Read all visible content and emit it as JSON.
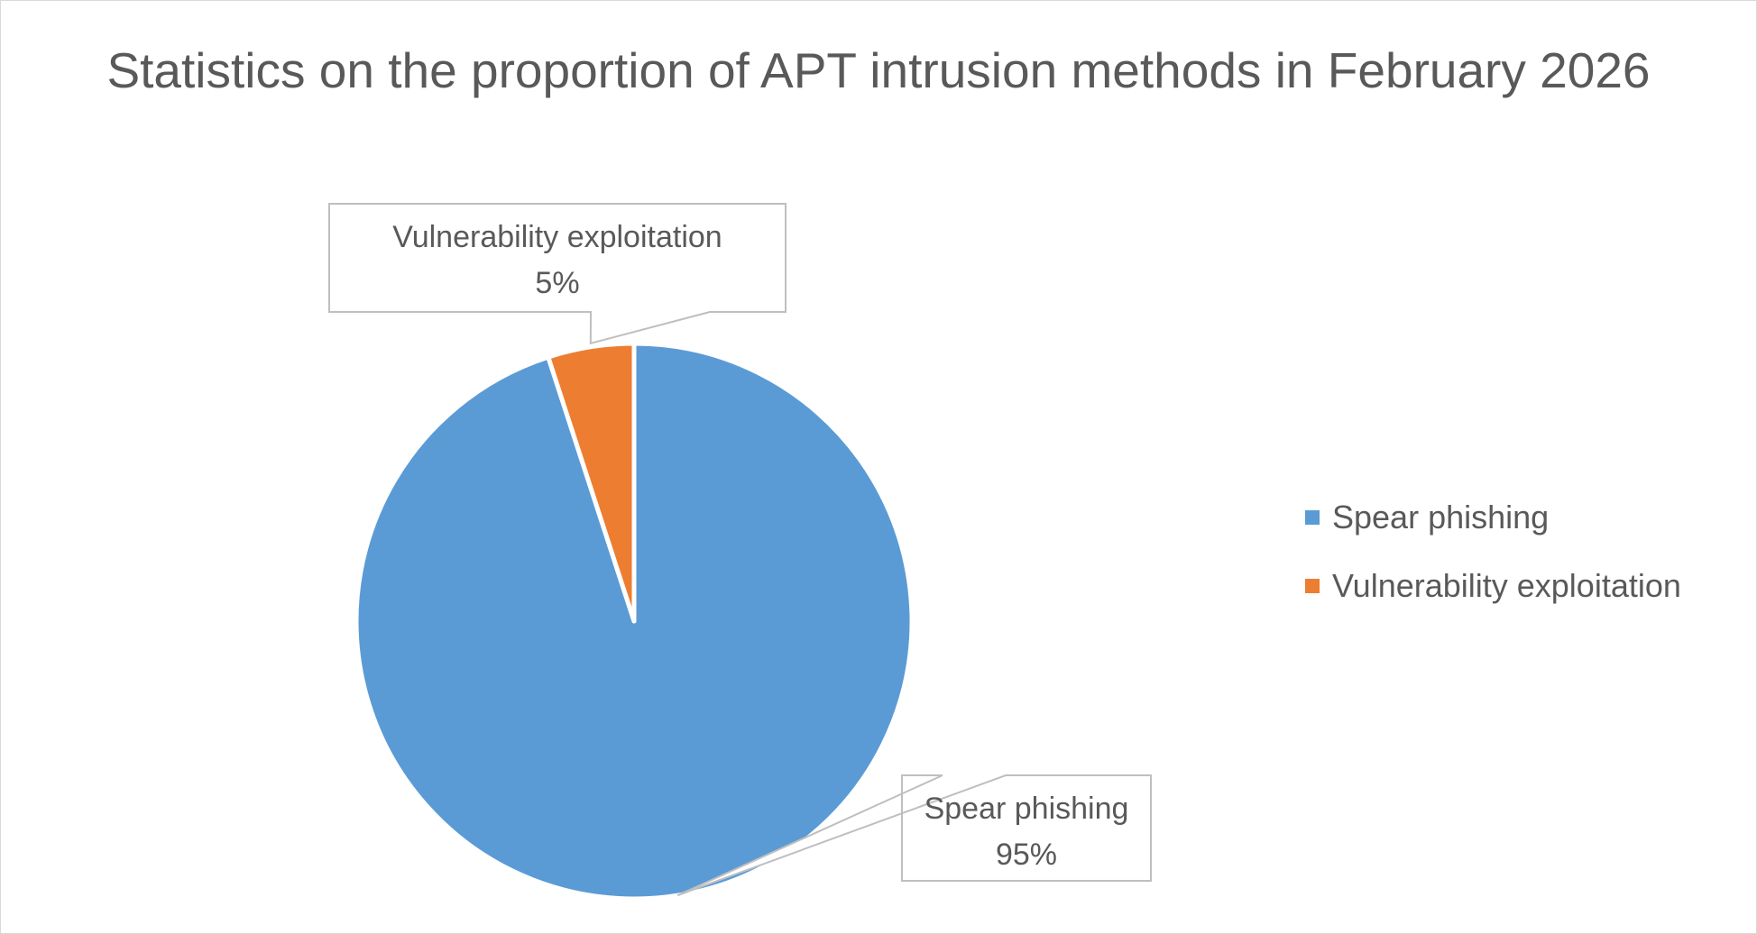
{
  "chart_data": {
    "type": "pie",
    "title": "Statistics on the proportion of APT intrusion methods in February 2026",
    "categories": [
      "Spear phishing",
      "Vulnerability exploitation"
    ],
    "values": [
      95,
      5
    ],
    "value_labels": [
      "95%",
      "5%"
    ],
    "colors": [
      "#5b9bd5",
      "#ed7d31"
    ],
    "start_angle_deg": 0,
    "direction": "clockwise",
    "data_labels": "callouts with category name and percentage",
    "legend_position": "right"
  }
}
